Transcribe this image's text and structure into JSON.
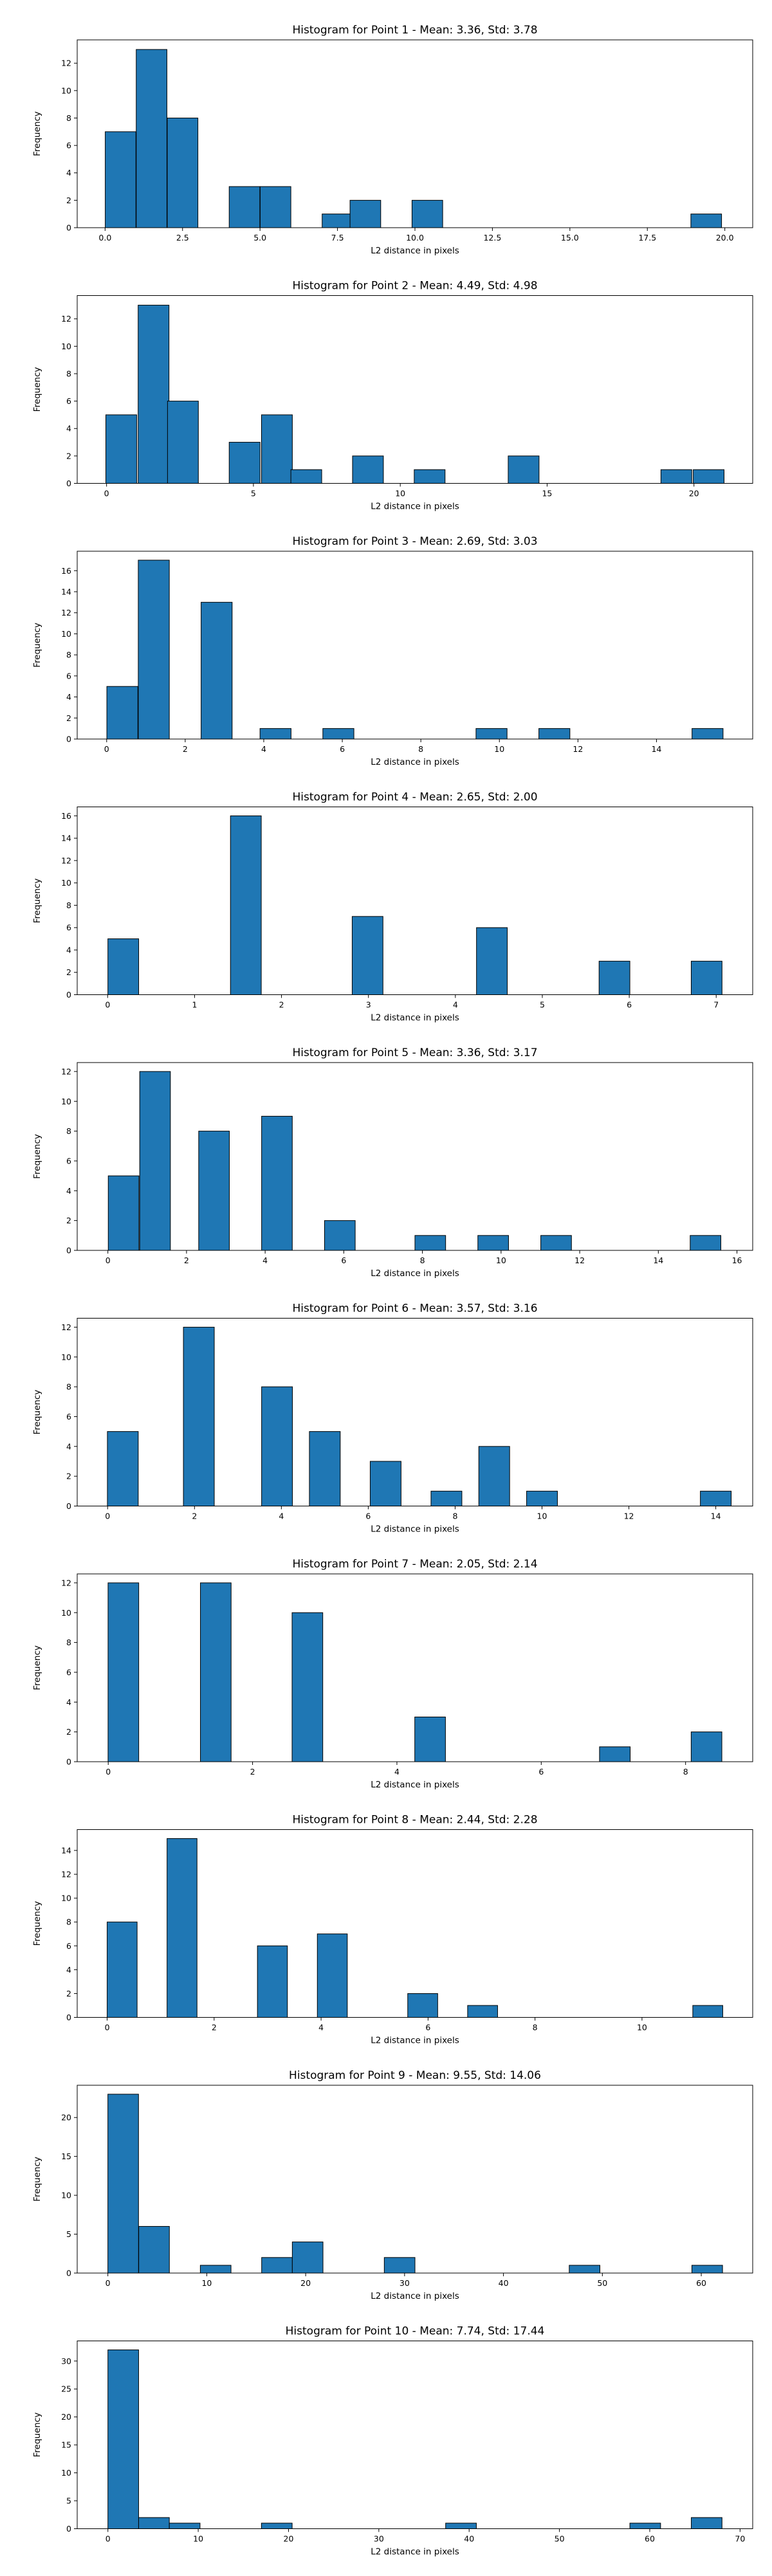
{
  "chart_data": [
    {
      "type": "bar",
      "title": "Histogram for Point 1 - Mean: 3.36, Std: 3.78",
      "xlabel": "L2 distance in pixels",
      "ylabel": "Frequency",
      "bin_width": 0.99,
      "x": [
        0.5,
        1.5,
        2.5,
        4.5,
        5.5,
        7.5,
        8.4,
        10.4,
        19.4
      ],
      "values": [
        7,
        13,
        8,
        3,
        3,
        1,
        2,
        2,
        1
      ],
      "xlim": [
        -0.9,
        20.9
      ],
      "ylim": [
        0,
        13.7
      ],
      "xticks": [
        0.0,
        2.5,
        5.0,
        7.5,
        10.0,
        12.5,
        15.0,
        17.5,
        20.0
      ],
      "xtick_labels": [
        "0.0",
        "2.5",
        "5.0",
        "7.5",
        "10.0",
        "12.5",
        "15.0",
        "17.5",
        "20.0"
      ],
      "yticks": [
        0,
        2,
        4,
        6,
        8,
        10,
        12
      ]
    },
    {
      "type": "bar",
      "title": "Histogram for Point 2 - Mean: 4.49, Std: 4.98",
      "xlabel": "L2 distance in pixels",
      "ylabel": "Frequency",
      "bin_width": 1.05,
      "x": [
        0.5,
        1.6,
        2.6,
        4.7,
        5.8,
        6.8,
        8.9,
        11.0,
        14.2,
        19.4,
        20.5
      ],
      "values": [
        5,
        13,
        6,
        3,
        5,
        1,
        2,
        1,
        2,
        1,
        1
      ],
      "xlim": [
        -1.0,
        22.0
      ],
      "ylim": [
        0,
        13.7
      ],
      "xticks": [
        0,
        5,
        10,
        15,
        20
      ],
      "xtick_labels": [
        "0",
        "5",
        "10",
        "15",
        "20"
      ],
      "yticks": [
        0,
        2,
        4,
        6,
        8,
        10,
        12
      ]
    },
    {
      "type": "bar",
      "title": "Histogram for Point 3 - Mean: 2.69, Std: 3.03",
      "xlabel": "L2 distance in pixels",
      "ylabel": "Frequency",
      "bin_width": 0.79,
      "x": [
        0.4,
        1.2,
        2.8,
        4.3,
        5.9,
        9.8,
        11.4,
        15.3
      ],
      "values": [
        5,
        17,
        13,
        1,
        1,
        1,
        1,
        1
      ],
      "xlim": [
        -0.75,
        16.45
      ],
      "ylim": [
        0,
        17.85
      ],
      "xticks": [
        0,
        2,
        4,
        6,
        8,
        10,
        12,
        14
      ],
      "xtick_labels": [
        "0",
        "2",
        "4",
        "6",
        "8",
        "10",
        "12",
        "14"
      ],
      "yticks": [
        0,
        2,
        4,
        6,
        8,
        10,
        12,
        14,
        16
      ]
    },
    {
      "type": "bar",
      "title": "Histogram for Point 4 - Mean: 2.65, Std: 2.00",
      "xlabel": "L2 distance in pixels",
      "ylabel": "Frequency",
      "bin_width": 0.354,
      "x": [
        0.18,
        1.59,
        2.99,
        4.42,
        5.83,
        6.89
      ],
      "values": [
        5,
        16,
        7,
        6,
        3,
        3
      ],
      "xlim": [
        -0.35,
        7.42
      ],
      "ylim": [
        0,
        16.8
      ],
      "xticks": [
        0,
        1,
        2,
        3,
        4,
        5,
        6,
        7
      ],
      "xtick_labels": [
        "0",
        "1",
        "2",
        "3",
        "4",
        "5",
        "6",
        "7"
      ],
      "yticks": [
        0,
        2,
        4,
        6,
        8,
        10,
        12,
        14,
        16
      ]
    },
    {
      "type": "bar",
      "title": "Histogram for Point 5 - Mean: 3.36, Std: 3.17",
      "xlabel": "L2 distance in pixels",
      "ylabel": "Frequency",
      "bin_width": 0.78,
      "x": [
        0.4,
        1.2,
        2.7,
        4.3,
        5.9,
        8.2,
        9.8,
        11.4,
        15.2
      ],
      "values": [
        5,
        12,
        8,
        9,
        2,
        1,
        1,
        1,
        1
      ],
      "xlim": [
        -0.78,
        16.4
      ],
      "ylim": [
        0,
        12.6
      ],
      "xticks": [
        0,
        2,
        4,
        6,
        8,
        10,
        12,
        14,
        16
      ],
      "xtick_labels": [
        "0",
        "2",
        "4",
        "6",
        "8",
        "10",
        "12",
        "14",
        "16"
      ],
      "yticks": [
        0,
        2,
        4,
        6,
        8,
        10,
        12
      ]
    },
    {
      "type": "bar",
      "title": "Histogram for Point 6 - Mean: 3.57, Std: 3.16",
      "xlabel": "L2 distance in pixels",
      "ylabel": "Frequency",
      "bin_width": 0.71,
      "x": [
        0.35,
        2.1,
        3.9,
        5.0,
        6.4,
        7.8,
        8.9,
        10.0,
        14.0
      ],
      "values": [
        5,
        12,
        8,
        5,
        3,
        1,
        4,
        1,
        1
      ],
      "xlim": [
        -0.7,
        14.85
      ],
      "ylim": [
        0,
        12.6
      ],
      "xticks": [
        0,
        2,
        4,
        6,
        8,
        10,
        12,
        14
      ],
      "xtick_labels": [
        "0",
        "2",
        "4",
        "6",
        "8",
        "10",
        "12",
        "14"
      ],
      "yticks": [
        0,
        2,
        4,
        6,
        8,
        10,
        12
      ]
    },
    {
      "type": "bar",
      "title": "Histogram for Point 7 - Mean: 2.05, Std: 2.14",
      "xlabel": "L2 distance in pixels",
      "ylabel": "Frequency",
      "bin_width": 0.425,
      "x": [
        0.21,
        1.49,
        2.76,
        4.46,
        7.02,
        8.29
      ],
      "values": [
        12,
        12,
        10,
        3,
        1,
        2
      ],
      "xlim": [
        -0.43,
        8.93
      ],
      "ylim": [
        0,
        12.6
      ],
      "xticks": [
        0,
        2,
        4,
        6,
        8
      ],
      "xtick_labels": [
        "0",
        "2",
        "4",
        "6",
        "8"
      ],
      "yticks": [
        0,
        2,
        4,
        6,
        8,
        10,
        12
      ]
    },
    {
      "type": "bar",
      "title": "Histogram for Point 8 - Mean: 2.44, Std: 2.28",
      "xlabel": "L2 distance in pixels",
      "ylabel": "Frequency",
      "bin_width": 0.56,
      "x": [
        0.28,
        1.4,
        3.09,
        4.21,
        5.9,
        7.02,
        11.23
      ],
      "values": [
        8,
        15,
        6,
        7,
        2,
        1,
        1
      ],
      "xlim": [
        -0.56,
        12.07
      ],
      "ylim": [
        0,
        15.75
      ],
      "xticks": [
        0,
        2,
        4,
        6,
        8,
        10
      ],
      "xtick_labels": [
        "0",
        "2",
        "4",
        "6",
        "8",
        "10"
      ],
      "yticks": [
        0,
        2,
        4,
        6,
        8,
        10,
        12,
        14
      ]
    },
    {
      "type": "bar",
      "title": "Histogram for Point 9 - Mean: 9.55, Std: 14.06",
      "xlabel": "L2 distance in pixels",
      "ylabel": "Frequency",
      "bin_width": 3.1,
      "x": [
        1.55,
        4.67,
        10.9,
        17.1,
        20.2,
        29.5,
        48.2,
        60.6
      ],
      "values": [
        23,
        6,
        1,
        2,
        4,
        2,
        1,
        1
      ],
      "xlim": [
        -3.1,
        65.2
      ],
      "ylim": [
        0,
        24.15
      ],
      "xticks": [
        0,
        10,
        20,
        30,
        40,
        50,
        60
      ],
      "xtick_labels": [
        "0",
        "10",
        "20",
        "30",
        "40",
        "50",
        "60"
      ],
      "yticks": [
        0,
        5,
        10,
        15,
        20
      ]
    },
    {
      "type": "bar",
      "title": "Histogram for Point 10 - Mean: 7.74, Std: 17.44",
      "xlabel": "L2 distance in pixels",
      "ylabel": "Frequency",
      "bin_width": 3.4,
      "x": [
        1.7,
        5.1,
        8.5,
        18.7,
        39.1,
        59.5,
        66.3
      ],
      "values": [
        32,
        2,
        1,
        1,
        1,
        1,
        2
      ],
      "xlim": [
        -3.4,
        71.4
      ],
      "ylim": [
        0,
        33.6
      ],
      "xticks": [
        0,
        10,
        20,
        30,
        40,
        50,
        60,
        70
      ],
      "xtick_labels": [
        "0",
        "10",
        "20",
        "30",
        "40",
        "50",
        "60",
        "70"
      ],
      "yticks": [
        0,
        5,
        10,
        15,
        20,
        25,
        30
      ]
    }
  ]
}
